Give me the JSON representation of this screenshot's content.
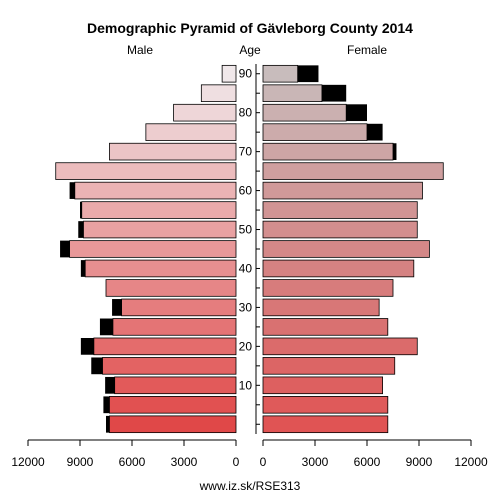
{
  "chart_data": {
    "type": "bar",
    "title": "Demographic Pyramid of Gävleborg County 2014",
    "male_label": "Male",
    "age_label": "Age",
    "female_label": "Female",
    "source": "www.iz.sk/RSE313",
    "age_ticks": [
      "10",
      "20",
      "30",
      "40",
      "50",
      "60",
      "70",
      "80",
      "90"
    ],
    "x_ticks_left": [
      "12000",
      "9000",
      "6000",
      "3000",
      "0"
    ],
    "x_ticks_right": [
      "0",
      "3000",
      "6000",
      "9000",
      "12000"
    ],
    "xlim": [
      0,
      12000
    ],
    "age_groups": [
      "0-4",
      "5-9",
      "10-14",
      "15-19",
      "20-24",
      "25-29",
      "30-34",
      "35-39",
      "40-44",
      "45-49",
      "50-54",
      "55-59",
      "60-64",
      "65-69",
      "70-74",
      "75-79",
      "80-84",
      "85-89",
      "90+"
    ],
    "series": [
      {
        "name": "Male",
        "values": [
          7300,
          7300,
          7000,
          7700,
          8200,
          7100,
          6600,
          7500,
          8700,
          9600,
          8800,
          8900,
          9300,
          10400,
          7300,
          5200,
          3600,
          2000,
          800
        ],
        "excess": [
          200,
          350,
          550,
          650,
          750,
          750,
          550,
          0,
          250,
          550,
          300,
          100,
          300,
          0,
          0,
          0,
          0,
          0,
          0
        ]
      },
      {
        "name": "Female",
        "values": [
          7200,
          7200,
          6900,
          7600,
          8900,
          7200,
          6700,
          7500,
          8700,
          9600,
          8900,
          8900,
          9200,
          10400,
          7500,
          6000,
          4800,
          3400,
          2000
        ],
        "excess": [
          0,
          0,
          0,
          0,
          0,
          0,
          0,
          0,
          0,
          0,
          0,
          0,
          0,
          0,
          200,
          900,
          1200,
          1400,
          1200
        ]
      }
    ]
  }
}
